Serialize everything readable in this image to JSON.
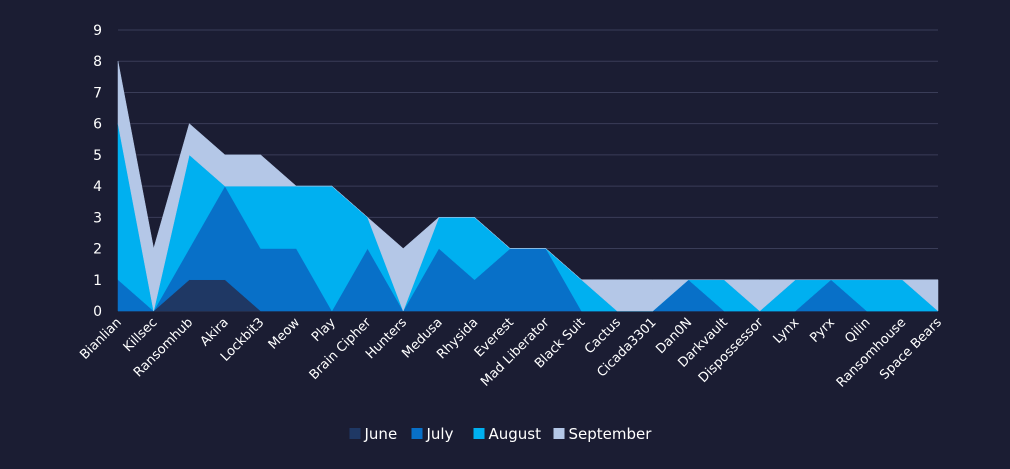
{
  "chart_data": {
    "type": "area",
    "stacked": true,
    "categories": [
      "Bianlian",
      "Killsec",
      "Ransomhub",
      "Akira",
      "Lockbit3",
      "Meow",
      "Play",
      "Brain Cipher",
      "Hunters",
      "Medusa",
      "Rhysida",
      "Everest",
      "Mad Liberator",
      "Black Suit",
      "Cactus",
      "Cicada3301",
      "Dan0N",
      "Darkvault",
      "Dispossessor",
      "Lynx",
      "Pyrx",
      "Qilin",
      "Ransomhouse",
      "Space Bears"
    ],
    "series": [
      {
        "name": "June",
        "color": "#1f3864",
        "values": [
          0,
          0,
          1,
          1,
          0,
          0,
          0,
          0,
          0,
          0,
          0,
          0,
          0,
          0,
          0,
          0,
          0,
          0,
          0,
          0,
          0,
          0,
          0,
          0
        ]
      },
      {
        "name": "July",
        "color": "#0870c8",
        "values": [
          1,
          0,
          1,
          3,
          2,
          2,
          0,
          2,
          0,
          2,
          1,
          2,
          2,
          0,
          0,
          0,
          1,
          0,
          0,
          0,
          1,
          0,
          0,
          0
        ]
      },
      {
        "name": "August",
        "color": "#00b0f0",
        "values": [
          5,
          0,
          3,
          0,
          2,
          2,
          4,
          1,
          0,
          1,
          2,
          0,
          0,
          1,
          0,
          0,
          0,
          1,
          0,
          1,
          0,
          1,
          1,
          0
        ]
      },
      {
        "name": "September",
        "color": "#b4c7e7",
        "values": [
          2,
          2,
          1,
          1,
          1,
          0,
          0,
          0,
          2,
          0,
          0,
          0,
          0,
          0,
          1,
          1,
          0,
          0,
          1,
          0,
          0,
          0,
          0,
          1
        ]
      }
    ],
    "yticks": [
      "0",
      "1",
      "2",
      "3",
      "4",
      "5",
      "6",
      "7",
      "8",
      "9"
    ],
    "ylim": [
      0,
      9
    ],
    "grid": true,
    "legend_position": "bottom"
  }
}
